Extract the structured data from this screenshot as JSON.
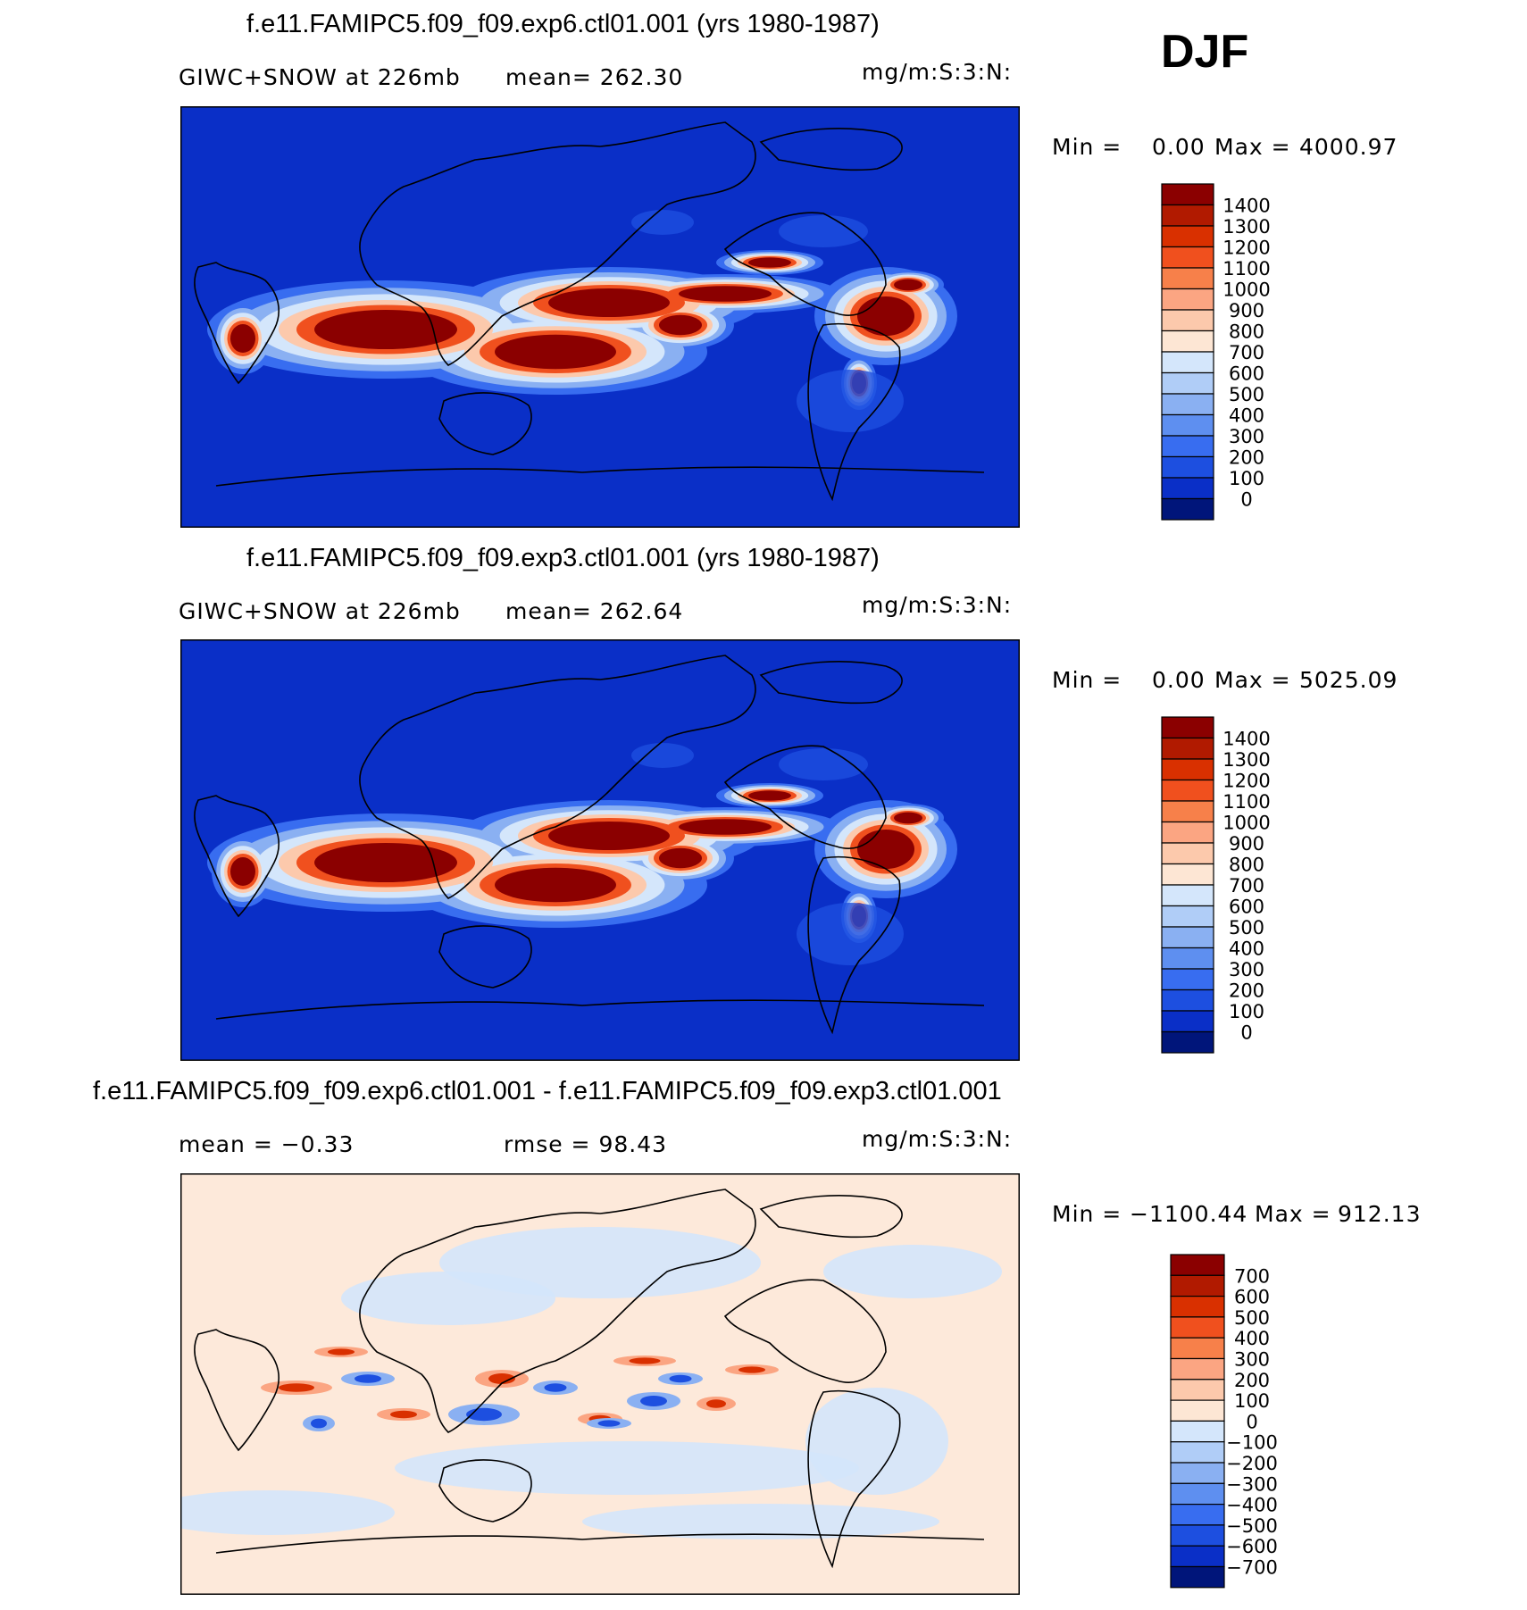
{
  "season": "DJF",
  "chart_data": [
    {
      "type": "heatmap",
      "title": "f.e11.FAMIPC5.f09_f09.exp6.ctl01.001 (yrs 1980-1987)",
      "left_label": "GIWC+SNOW at 226mb",
      "mean_label": "mean= 262.30",
      "units": "mg/m:S:3:N:",
      "min_label": "Min =",
      "min_value": "0.00",
      "max_label": "Max =",
      "max_value": "4000.97",
      "mean": 262.3,
      "min": 0.0,
      "max": 4000.97,
      "colorbar_levels": [
        "1400",
        "1300",
        "1200",
        "1100",
        "1000",
        "900",
        "800",
        "700",
        "600",
        "500",
        "400",
        "300",
        "200",
        "100",
        "0"
      ],
      "colorbar_colors": [
        "#8b0000",
        "#b11a00",
        "#d93000",
        "#f0501e",
        "#f7804a",
        "#fba582",
        "#fcc9ac",
        "#fde6d4",
        "#d4e6fb",
        "#b0cdf7",
        "#8ab0f2",
        "#5e8ff0",
        "#386df0",
        "#1d4fe0",
        "#0a2fc7",
        "#00157a"
      ],
      "map_background": "#0a2fc7"
    },
    {
      "type": "heatmap",
      "title": "f.e11.FAMIPC5.f09_f09.exp3.ctl01.001 (yrs 1980-1987)",
      "left_label": "GIWC+SNOW at 226mb",
      "mean_label": "mean= 262.64",
      "units": "mg/m:S:3:N:",
      "min_label": "Min =",
      "min_value": "0.00",
      "max_label": "Max =",
      "max_value": "5025.09",
      "mean": 262.64,
      "min": 0.0,
      "max": 5025.09,
      "colorbar_levels": [
        "1400",
        "1300",
        "1200",
        "1100",
        "1000",
        "900",
        "800",
        "700",
        "600",
        "500",
        "400",
        "300",
        "200",
        "100",
        "0"
      ],
      "colorbar_colors": [
        "#8b0000",
        "#b11a00",
        "#d93000",
        "#f0501e",
        "#f7804a",
        "#fba582",
        "#fcc9ac",
        "#fde6d4",
        "#d4e6fb",
        "#b0cdf7",
        "#8ab0f2",
        "#5e8ff0",
        "#386df0",
        "#1d4fe0",
        "#0a2fc7",
        "#00157a"
      ],
      "map_background": "#0a2fc7"
    },
    {
      "type": "heatmap",
      "title": "f.e11.FAMIPC5.f09_f09.exp6.ctl01.001 - f.e11.FAMIPC5.f09_f09.exp3.ctl01.001",
      "left_label": "mean = −0.33",
      "mean_label": "rmse = 98.43",
      "units": "mg/m:S:3:N:",
      "min_label": "Min =",
      "min_value": "−1100.44",
      "max_label": "Max =",
      "max_value": "912.13",
      "mean": -0.33,
      "rmse": 98.43,
      "min": -1100.44,
      "max": 912.13,
      "colorbar_levels": [
        "700",
        "600",
        "500",
        "400",
        "300",
        "200",
        "100",
        "0",
        "−100",
        "−200",
        "−300",
        "−400",
        "−500",
        "−600",
        "−700"
      ],
      "colorbar_colors": [
        "#8b0000",
        "#b11a00",
        "#d93000",
        "#f0501e",
        "#f7804a",
        "#fba582",
        "#fcc9ac",
        "#fde6d4",
        "#d4e6fb",
        "#b0cdf7",
        "#8ab0f2",
        "#5e8ff0",
        "#386df0",
        "#1d4fe0",
        "#0a2fc7",
        "#00157a"
      ],
      "map_background": "#fde9da"
    }
  ]
}
